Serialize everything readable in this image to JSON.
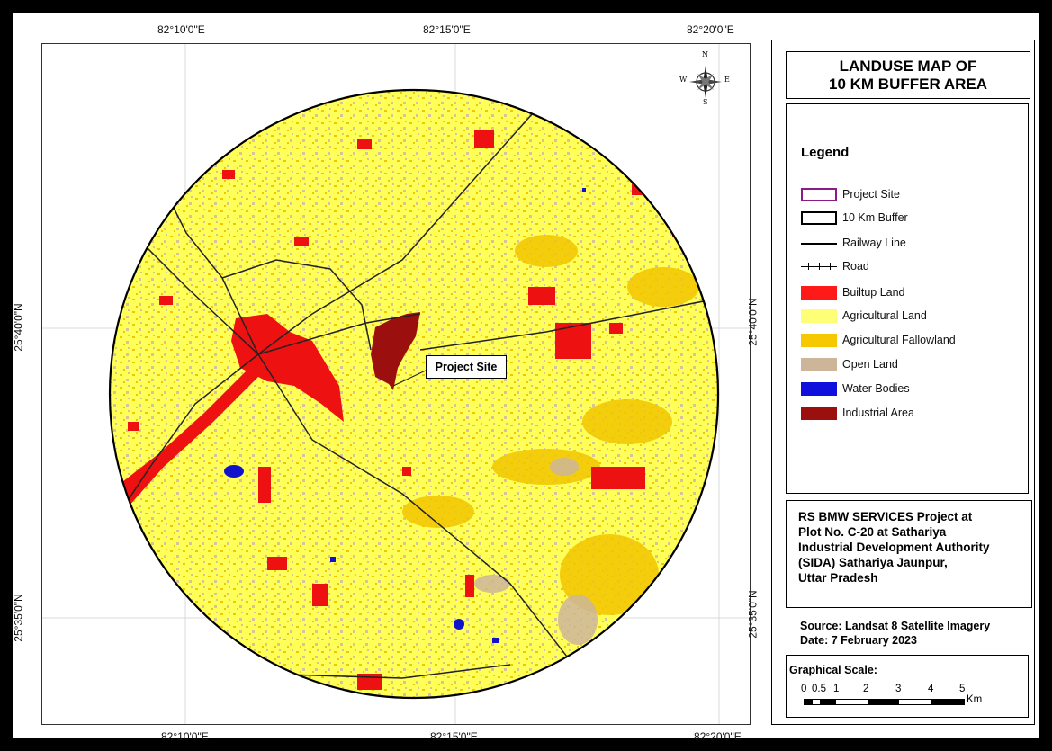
{
  "map": {
    "top_ticks": [
      "82°10'0\"E",
      "82°15'0\"E",
      "82°20'0\"E"
    ],
    "bottom_ticks": [
      "82°10'0\"E",
      "82°15'0\"E",
      "82°20'0\"E"
    ],
    "left_ticks": [
      "25°40'0\"N",
      "25°35'0\"N"
    ],
    "right_ticks": [
      "25°40'0\"N",
      "25°35'0\"N"
    ],
    "site_callout": "Project Site",
    "compass": {
      "n": "N",
      "s": "S",
      "e": "E",
      "w": "W"
    }
  },
  "title": {
    "line1": "LANDUSE MAP OF",
    "line2": "10 KM BUFFER AREA"
  },
  "legend": {
    "heading": "Legend",
    "items": [
      {
        "label": "Project Site",
        "kind": "outline",
        "color": "#8b1a8b"
      },
      {
        "label": "10 Km Buffer",
        "kind": "outline",
        "color": "#000000"
      },
      {
        "label": "Railway Line",
        "kind": "line",
        "color": "#000000"
      },
      {
        "label": "Road",
        "kind": "road",
        "color": "#000000"
      },
      {
        "label": "Builtup Land",
        "kind": "fill",
        "color": "#ff1a1a"
      },
      {
        "label": "Agricultural Land",
        "kind": "fill",
        "color": "#ffff77"
      },
      {
        "label": "Agricultural Fallowland",
        "kind": "fill",
        "color": "#f5c800"
      },
      {
        "label": "Open Land",
        "kind": "fill",
        "color": "#cdb59a"
      },
      {
        "label": "Water Bodies",
        "kind": "fill",
        "color": "#1010dd"
      },
      {
        "label": "Industrial Area",
        "kind": "fill",
        "color": "#9b0f0f"
      }
    ]
  },
  "project_info": {
    "lines": [
      "RS BMW SERVICES Project at",
      "Plot No. C-20 at Sathariya",
      "Industrial Development Authority",
      "(SIDA) Sathariya Jaunpur,",
      "Uttar Pradesh"
    ]
  },
  "source": {
    "line1": "Source: Landsat 8 Satellite Imagery",
    "line2": "Date:  7 February 2023"
  },
  "scale": {
    "title": "Graphical Scale:",
    "labels": [
      "0",
      "0.5",
      "1",
      "2",
      "3",
      "4",
      "5"
    ],
    "unit": "Km"
  }
}
